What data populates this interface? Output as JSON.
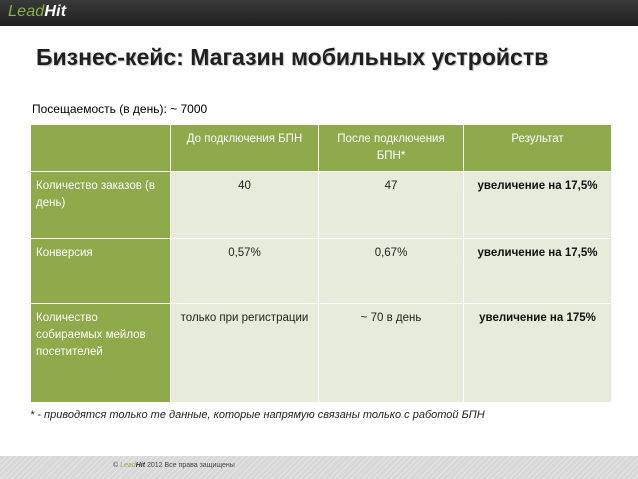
{
  "header": {
    "logo_part1": "Lead",
    "logo_part2": "Hit"
  },
  "slide": {
    "title": "Бизнес-кейс: Магазин мобильных устройств",
    "traffic": "Посещаемость (в день): ~ 7000"
  },
  "table": {
    "columns": [
      "",
      "До подключения БПН",
      "После подключения БПН*",
      "Результат"
    ],
    "rows": [
      {
        "label": "Количество заказов (в день)",
        "before": "40",
        "after": "47",
        "result": "увеличение на 17,5%"
      },
      {
        "label": "Конверсия",
        "before": "0,57%",
        "after": "0,67%",
        "result": "увеличение на 17,5%"
      },
      {
        "label": "Количество собираемых мейлов посетителей",
        "before": "только при регистрации",
        "after": "~ 70 в день",
        "result": "увеличение на 175%"
      }
    ]
  },
  "footnote": "* - приводятся только те данные, которые напрямую связаны только с работой БПН",
  "footer": {
    "symbol": "©",
    "brand_part1": "Lead",
    "brand_part2": "Hit",
    "text": "2012 Все права защищены"
  },
  "colors": {
    "table_header": "#8eaa4a",
    "table_cell": "#e6ecd9",
    "top_bar": "#2a2a2a",
    "logo_green": "#8ab04c"
  }
}
